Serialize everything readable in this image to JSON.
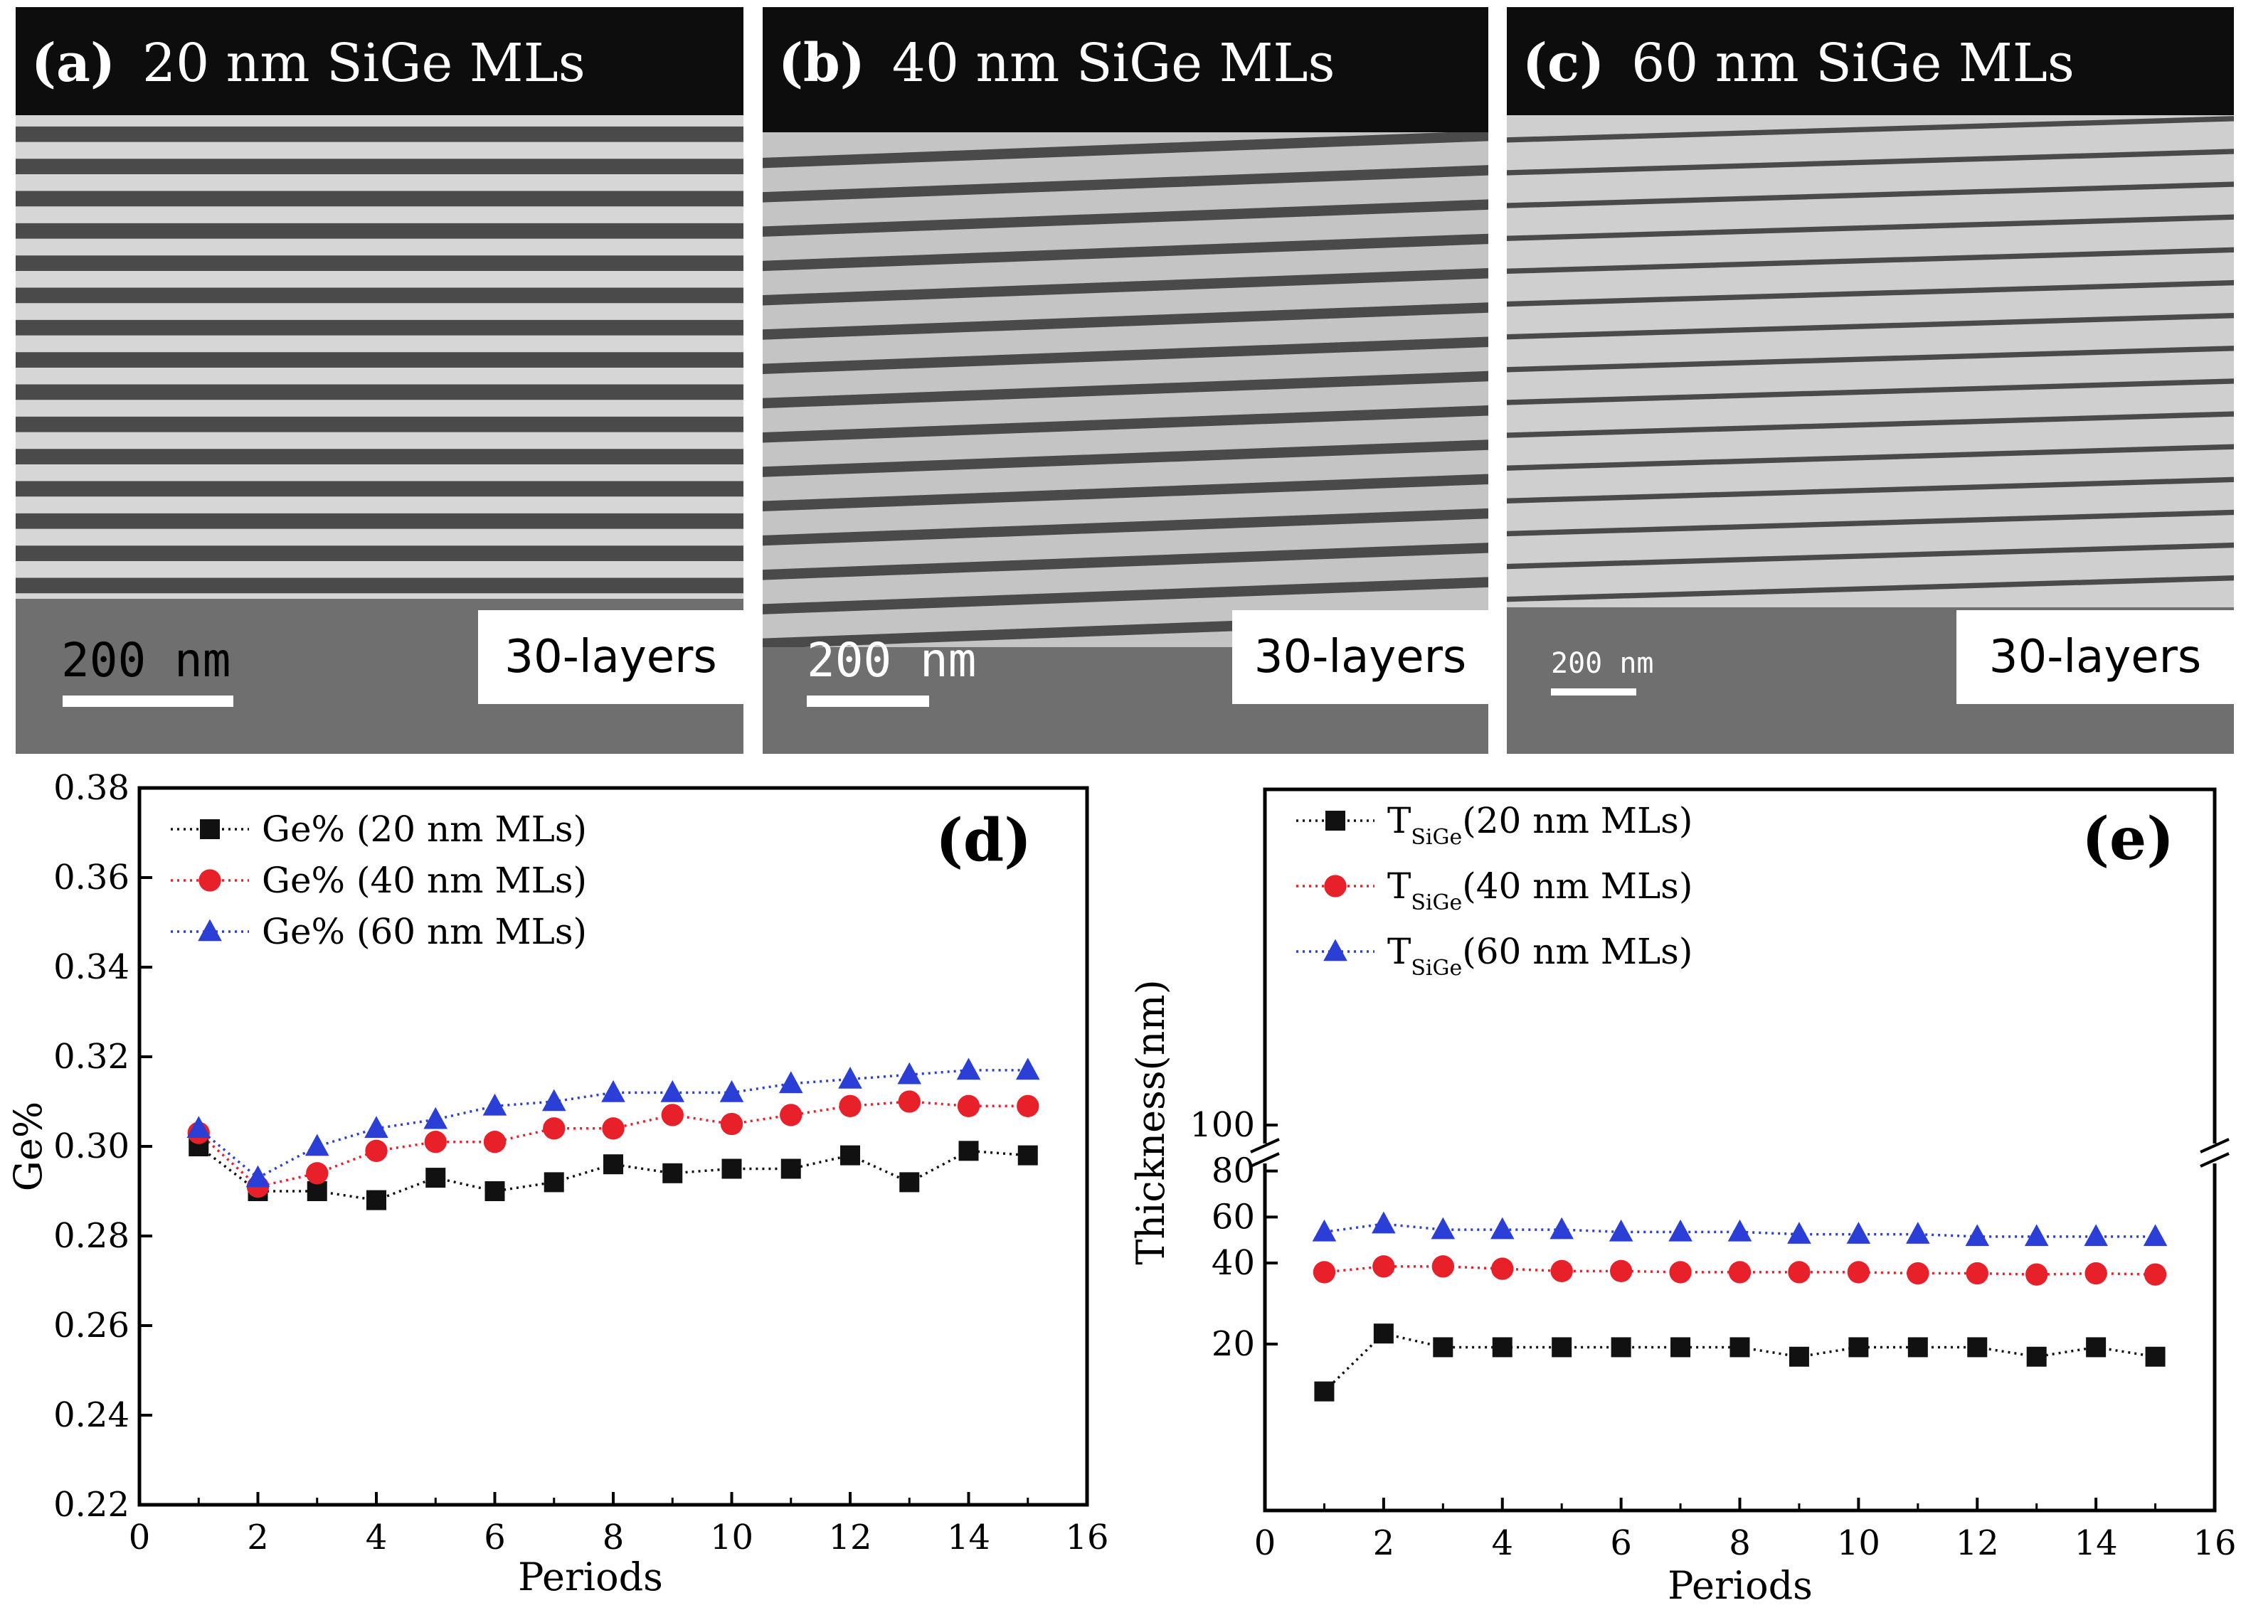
{
  "tem_panels": [
    {
      "letter": "(a)",
      "title": "20 nm SiGe MLs",
      "scale": "200 nm",
      "layers": "30-layers"
    },
    {
      "letter": "(b)",
      "title": "40 nm SiGe MLs",
      "scale": "200 nm",
      "layers": "30-layers"
    },
    {
      "letter": "(c)",
      "title": "60 nm SiGe MLs",
      "scale": "200 nm",
      "layers": "30-layers"
    }
  ],
  "chart_data": [
    {
      "type": "line",
      "panel_label": "(d)",
      "xlabel": "Periods",
      "ylabel": "Ge%",
      "xlim": [
        0,
        16
      ],
      "ylim": [
        0.22,
        0.38
      ],
      "xticks": [
        "0",
        "2",
        "4",
        "6",
        "8",
        "10",
        "12",
        "14",
        "16"
      ],
      "yticks": [
        "0.22",
        "0.24",
        "0.26",
        "0.28",
        "0.30",
        "0.32",
        "0.34",
        "0.36",
        "0.38"
      ],
      "legend_position": "top-left",
      "x": [
        1,
        2,
        3,
        4,
        5,
        6,
        7,
        8,
        9,
        10,
        11,
        12,
        13,
        14,
        15
      ],
      "series": [
        {
          "name": "Ge% (20 nm MLs)",
          "color": "#111111",
          "marker": "square",
          "values": [
            0.3,
            0.29,
            0.29,
            0.288,
            0.293,
            0.29,
            0.292,
            0.296,
            0.294,
            0.295,
            0.295,
            0.298,
            0.292,
            0.299,
            0.298
          ]
        },
        {
          "name": "Ge% (40 nm MLs)",
          "color": "#e8202a",
          "marker": "circle",
          "values": [
            0.303,
            0.291,
            0.294,
            0.299,
            0.301,
            0.301,
            0.304,
            0.304,
            0.307,
            0.305,
            0.307,
            0.309,
            0.31,
            0.309,
            0.309
          ]
        },
        {
          "name": "Ge% (60 nm MLs)",
          "color": "#2b3fd6",
          "marker": "triangle",
          "values": [
            0.304,
            0.293,
            0.3,
            0.304,
            0.306,
            0.309,
            0.31,
            0.312,
            0.312,
            0.312,
            0.314,
            0.315,
            0.316,
            0.317,
            0.317
          ]
        }
      ]
    },
    {
      "type": "line",
      "panel_label": "(e)",
      "xlabel": "Periods",
      "ylabel": "Thickness(nm)",
      "xlim": [
        0,
        16
      ],
      "axis_break": true,
      "xticks": [
        "0",
        "2",
        "4",
        "6",
        "8",
        "10",
        "12",
        "14",
        "16"
      ],
      "yticks": [
        "20",
        "40",
        "60",
        "80",
        "100"
      ],
      "legend_position": "top-left",
      "x": [
        1,
        2,
        3,
        4,
        5,
        6,
        7,
        8,
        9,
        10,
        11,
        12,
        13,
        14,
        15
      ],
      "series": [
        {
          "name": "T",
          "name_sub": "SiGe",
          "name_rest": "(20 nm MLs)",
          "color": "#111111",
          "marker": "square",
          "values": [
            15.5,
            21.0,
            19.7,
            19.7,
            19.7,
            19.7,
            19.7,
            19.7,
            18.8,
            19.7,
            19.7,
            19.7,
            18.8,
            19.7,
            18.8
          ]
        },
        {
          "name": "T",
          "name_sub": "SiGe",
          "name_rest": "(40 nm MLs)",
          "color": "#e8202a",
          "marker": "circle",
          "values": [
            36,
            38.5,
            38.5,
            37.5,
            36.5,
            36.5,
            36,
            36,
            36,
            36,
            35.5,
            35.5,
            35,
            35.5,
            35
          ]
        },
        {
          "name": "T",
          "name_sub": "SiGe",
          "name_rest": "(60 nm MLs)",
          "color": "#2b3fd6",
          "marker": "triangle",
          "values": [
            53.5,
            57,
            54.5,
            54.5,
            54.5,
            53.5,
            53.5,
            53.5,
            52.5,
            52.5,
            52.5,
            51.5,
            51.5,
            51.5,
            51.5
          ]
        }
      ]
    }
  ]
}
